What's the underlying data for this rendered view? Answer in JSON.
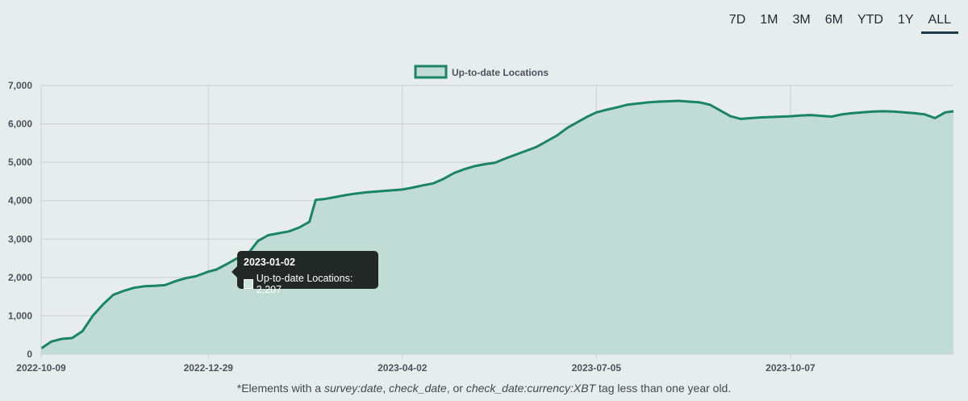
{
  "range_selector": {
    "options": [
      "7D",
      "1M",
      "3M",
      "6M",
      "YTD",
      "1Y",
      "ALL"
    ],
    "active": "ALL"
  },
  "chart_data": {
    "type": "area",
    "title": "",
    "xlabel": "",
    "ylabel": "",
    "legend": {
      "label": "Up-to-date Locations",
      "placement": "top-center"
    },
    "grid": true,
    "colors": {
      "line": "#1a8467",
      "fill": "#c0dcd5"
    },
    "ylim": [
      0,
      7000
    ],
    "y_ticks": [
      "0",
      "1,000",
      "2,000",
      "3,000",
      "4,000",
      "5,000",
      "6,000",
      "7,000"
    ],
    "y_tick_values": [
      0,
      1000,
      2000,
      3000,
      4000,
      5000,
      6000,
      7000
    ],
    "xlim": [
      "2022-10-09",
      "2023-12-25"
    ],
    "x_ticks": [
      "2022-10-09",
      "2022-12-29",
      "2023-04-02",
      "2023-07-05",
      "2023-10-07"
    ],
    "series": [
      {
        "name": "Up-to-date Locations",
        "x": [
          "2022-10-09",
          "2022-10-14",
          "2022-10-19",
          "2022-10-24",
          "2022-10-29",
          "2022-11-03",
          "2022-11-08",
          "2022-11-13",
          "2022-11-18",
          "2022-11-23",
          "2022-11-28",
          "2022-12-03",
          "2022-12-08",
          "2022-12-13",
          "2022-12-18",
          "2022-12-23",
          "2022-12-29",
          "2023-01-02",
          "2023-01-07",
          "2023-01-12",
          "2023-01-17",
          "2023-01-22",
          "2023-01-27",
          "2023-02-01",
          "2023-02-06",
          "2023-02-11",
          "2023-02-16",
          "2023-02-19",
          "2023-02-23",
          "2023-03-01",
          "2023-03-06",
          "2023-03-11",
          "2023-03-16",
          "2023-03-21",
          "2023-03-26",
          "2023-04-02",
          "2023-04-07",
          "2023-04-12",
          "2023-04-17",
          "2023-04-22",
          "2023-04-27",
          "2023-05-02",
          "2023-05-07",
          "2023-05-12",
          "2023-05-17",
          "2023-05-22",
          "2023-05-27",
          "2023-06-01",
          "2023-06-06",
          "2023-06-11",
          "2023-06-16",
          "2023-06-21",
          "2023-06-26",
          "2023-07-01",
          "2023-07-05",
          "2023-07-10",
          "2023-07-15",
          "2023-07-20",
          "2023-07-25",
          "2023-07-30",
          "2023-08-04",
          "2023-08-09",
          "2023-08-14",
          "2023-08-19",
          "2023-08-24",
          "2023-08-29",
          "2023-09-03",
          "2023-09-08",
          "2023-09-13",
          "2023-09-18",
          "2023-09-23",
          "2023-09-28",
          "2023-10-03",
          "2023-10-07",
          "2023-10-12",
          "2023-10-17",
          "2023-10-22",
          "2023-10-27",
          "2023-11-01",
          "2023-11-06",
          "2023-11-11",
          "2023-11-16",
          "2023-11-21",
          "2023-11-26",
          "2023-12-01",
          "2023-12-06",
          "2023-12-11",
          "2023-12-16",
          "2023-12-21",
          "2023-12-25"
        ],
        "values": [
          150,
          330,
          400,
          420,
          600,
          1000,
          1300,
          1550,
          1650,
          1730,
          1770,
          1780,
          1800,
          1900,
          1980,
          2030,
          2150,
          2207,
          2350,
          2500,
          2600,
          2950,
          3100,
          3150,
          3200,
          3300,
          3450,
          4020,
          4040,
          4100,
          4150,
          4190,
          4220,
          4240,
          4260,
          4290,
          4340,
          4400,
          4450,
          4570,
          4720,
          4820,
          4900,
          4950,
          4990,
          5100,
          5200,
          5300,
          5400,
          5550,
          5700,
          5900,
          6050,
          6200,
          6300,
          6370,
          6430,
          6500,
          6530,
          6560,
          6580,
          6590,
          6600,
          6580,
          6560,
          6500,
          6350,
          6200,
          6130,
          6150,
          6170,
          6180,
          6190,
          6200,
          6220,
          6230,
          6210,
          6190,
          6250,
          6280,
          6300,
          6320,
          6330,
          6320,
          6300,
          6280,
          6250,
          6150,
          6300,
          6330
        ]
      }
    ]
  },
  "tooltip": {
    "title": "2023-01-02",
    "text": "Up-to-date Locations: 2,207"
  },
  "footnote": {
    "prefix": "*Elements with a ",
    "tag1": "survey:date",
    "sep1": ", ",
    "tag2": "check_date",
    "sep2": ", or ",
    "tag3": "check_date:currency:XBT",
    "suffix": " tag less than one year old."
  }
}
